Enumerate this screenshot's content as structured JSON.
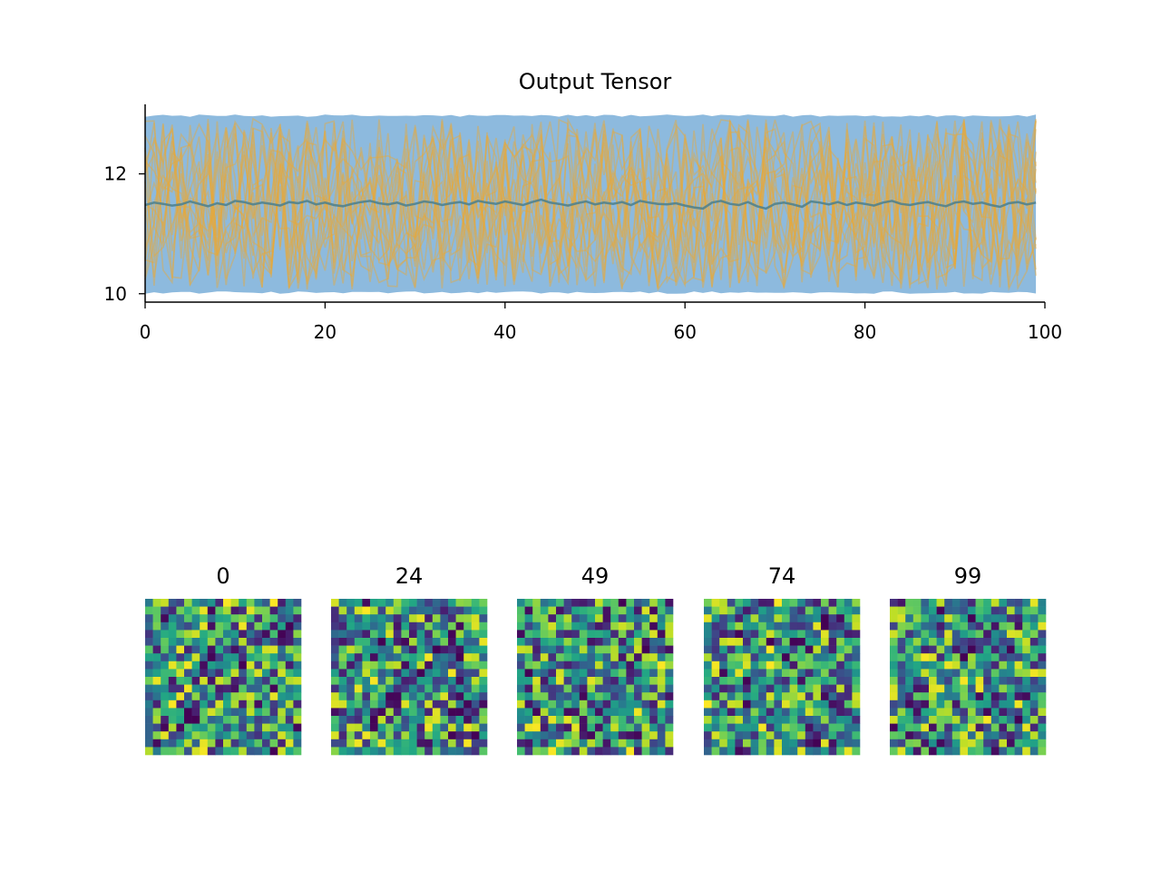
{
  "chart_data": [
    {
      "type": "line",
      "title": "Output Tensor",
      "xlabel": "",
      "ylabel": "",
      "xlim": [
        0,
        100
      ],
      "ylim": [
        9.86,
        13.16
      ],
      "xticks": [
        0,
        20,
        40,
        60,
        80,
        100
      ],
      "yticks": [
        10,
        12
      ],
      "x_range": [
        0,
        99
      ],
      "grid": false,
      "band": {
        "min": 10.02,
        "max": 12.97,
        "color": "#8dbade"
      },
      "mean_line": {
        "color": "#4b7f8c",
        "values": [
          11.48,
          11.52,
          11.5,
          11.47,
          11.49,
          11.54,
          11.5,
          11.46,
          11.51,
          11.48,
          11.55,
          11.53,
          11.49,
          11.52,
          11.5,
          11.47,
          11.53,
          11.51,
          11.55,
          11.49,
          11.52,
          11.48,
          11.46,
          11.5,
          11.53,
          11.55,
          11.51,
          11.49,
          11.52,
          11.47,
          11.5,
          11.54,
          11.52,
          11.48,
          11.51,
          11.53,
          11.49,
          11.55,
          11.52,
          11.5,
          11.54,
          11.51,
          11.48,
          11.53,
          11.57,
          11.52,
          11.5,
          11.47,
          11.51,
          11.54,
          11.49,
          11.52,
          11.5,
          11.53,
          11.48,
          11.55,
          11.52,
          11.5,
          11.49,
          11.51,
          11.47,
          11.44,
          11.42,
          11.52,
          11.55,
          11.5,
          11.48,
          11.53,
          11.46,
          11.42,
          11.5,
          11.52,
          11.49,
          11.45,
          11.54,
          11.52,
          11.49,
          11.53,
          11.48,
          11.52,
          11.5,
          11.47,
          11.52,
          11.55,
          11.5,
          11.48,
          11.51,
          11.53,
          11.49,
          11.46,
          11.52,
          11.54,
          11.5,
          11.52,
          11.48,
          11.45,
          11.51,
          11.53,
          11.49,
          11.52
        ]
      },
      "traces": {
        "count": 18,
        "color": "#e8a838",
        "opacity": 0.45
      }
    },
    {
      "type": "heatmap",
      "colormap": "viridis",
      "panels": [
        {
          "title": "0",
          "index": 0
        },
        {
          "title": "24",
          "index": 24
        },
        {
          "title": "49",
          "index": 49
        },
        {
          "title": "74",
          "index": 74
        },
        {
          "title": "99",
          "index": 99
        }
      ],
      "grid_size": [
        20,
        20
      ],
      "value_range": [
        0,
        1
      ]
    }
  ]
}
